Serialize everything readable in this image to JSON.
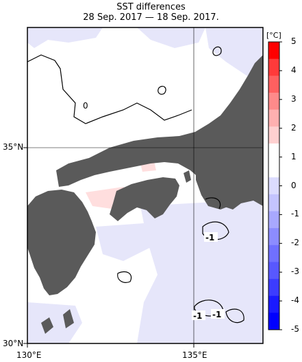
{
  "title_line1": "SST differences",
  "title_line2": "28 Sep. 2017 — 18 Sep. 2017.",
  "unit": "[°C]",
  "axes": {
    "lat_labels": [
      "35°N",
      "30°N"
    ],
    "lon_labels": [
      "130°E",
      "135°E"
    ]
  },
  "colorbar": {
    "ticks": [
      "5",
      "4",
      "3",
      "2",
      "1",
      "0",
      "-1",
      "-2",
      "-3",
      "-4",
      "-5"
    ],
    "colors": [
      "#ff0000",
      "#ff3a3a",
      "#ff6060",
      "#ff8a8a",
      "#ffb0b0",
      "#ffd0d0",
      "#ffffff",
      "#ffffff",
      "#dcdcff",
      "#c4c4ff",
      "#a8a8ff",
      "#8c8cff",
      "#7070ff",
      "#5858ff",
      "#3c3cff",
      "#1a1aff",
      "#0000ff"
    ]
  },
  "contour_labels": [
    "0",
    "-1",
    "-1",
    "-1"
  ],
  "colors": {
    "land": "#5a5a5a",
    "cool_shade": "#e6e6fa",
    "warm_shade": "#ffdede",
    "frame": "#000000"
  }
}
